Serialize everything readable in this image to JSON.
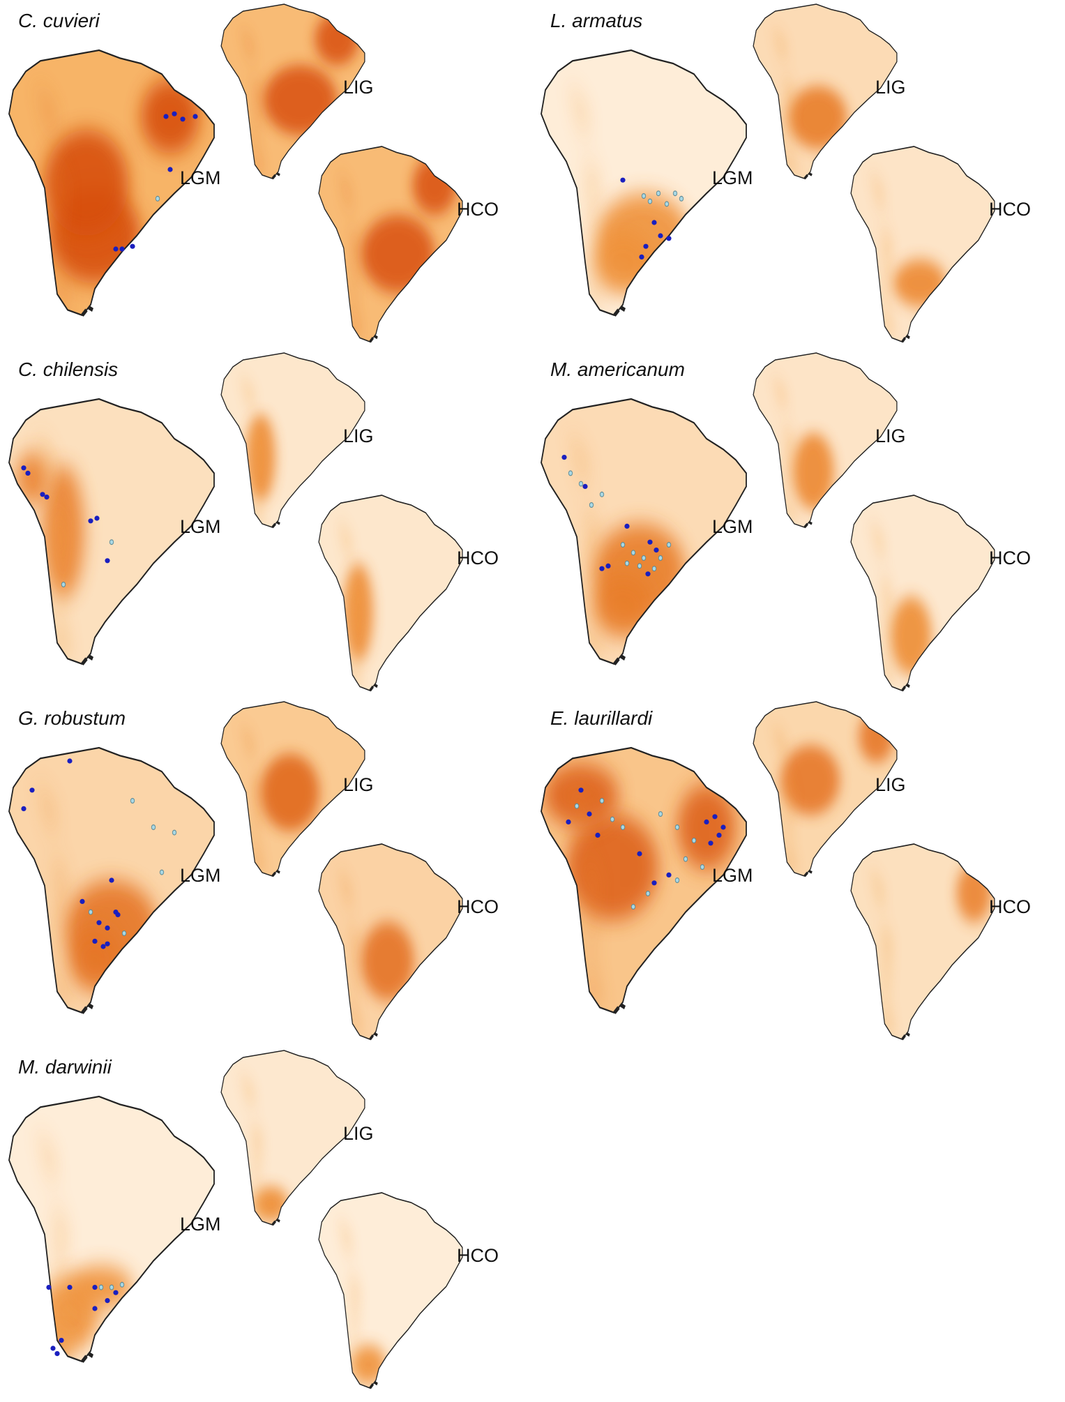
{
  "period_labels": {
    "lgm": "LGM",
    "lig": "LIG",
    "hco": "HCO"
  },
  "panels": [
    {
      "id": "cuvieri",
      "title": "C. cuvieri",
      "intensity": {
        "lgm": 0.8,
        "lig": 0.72,
        "hco": 0.72
      },
      "lgm_core": [
        [
          0.78,
          0.25,
          0.14,
          0.14
        ],
        [
          0.42,
          0.7,
          0.22,
          0.18
        ],
        [
          0.38,
          0.5,
          0.2,
          0.2
        ]
      ],
      "lig_core": [
        [
          0.55,
          0.55,
          0.25,
          0.2
        ],
        [
          0.8,
          0.2,
          0.15,
          0.15
        ]
      ],
      "hco_core": [
        [
          0.55,
          0.55,
          0.25,
          0.2
        ],
        [
          0.8,
          0.2,
          0.15,
          0.15
        ]
      ],
      "occ_major": [
        [
          0.76,
          0.25
        ],
        [
          0.8,
          0.24
        ],
        [
          0.84,
          0.26
        ],
        [
          0.9,
          0.25
        ],
        [
          0.78,
          0.45
        ],
        [
          0.52,
          0.75
        ],
        [
          0.55,
          0.75
        ],
        [
          0.6,
          0.74
        ]
      ],
      "occ_minor": [
        [
          0.72,
          0.56
        ]
      ]
    },
    {
      "id": "armatus",
      "title": "L. armatus",
      "intensity": {
        "lgm": 0.15,
        "lig": 0.35,
        "hco": 0.25
      },
      "lgm_core": [
        [
          0.5,
          0.7,
          0.22,
          0.16
        ],
        [
          0.4,
          0.8,
          0.14,
          0.12
        ]
      ],
      "lig_core": [
        [
          0.45,
          0.65,
          0.2,
          0.18
        ]
      ],
      "hco_core": [
        [
          0.48,
          0.7,
          0.18,
          0.12
        ]
      ],
      "occ_major": [
        [
          0.4,
          0.49
        ],
        [
          0.55,
          0.65
        ],
        [
          0.58,
          0.7
        ],
        [
          0.62,
          0.71
        ],
        [
          0.51,
          0.74
        ],
        [
          0.49,
          0.78
        ]
      ],
      "occ_minor": [
        [
          0.5,
          0.55
        ],
        [
          0.53,
          0.57
        ],
        [
          0.57,
          0.54
        ],
        [
          0.61,
          0.58
        ],
        [
          0.65,
          0.54
        ],
        [
          0.68,
          0.56
        ]
      ]
    },
    {
      "id": "chilensis",
      "title": "C. chilensis",
      "intensity": {
        "lgm": 0.3,
        "lig": 0.22,
        "hco": 0.22
      },
      "lgm_core": [
        [
          0.27,
          0.5,
          0.1,
          0.25
        ],
        [
          0.12,
          0.3,
          0.08,
          0.1
        ]
      ],
      "lig_core": [
        [
          0.28,
          0.6,
          0.1,
          0.25
        ]
      ],
      "hco_core": [
        [
          0.28,
          0.6,
          0.1,
          0.25
        ]
      ],
      "occ_major": [
        [
          0.08,
          0.26
        ],
        [
          0.1,
          0.28
        ],
        [
          0.17,
          0.36
        ],
        [
          0.19,
          0.37
        ],
        [
          0.4,
          0.46
        ],
        [
          0.43,
          0.45
        ],
        [
          0.48,
          0.61
        ]
      ],
      "occ_minor": [
        [
          0.5,
          0.54
        ],
        [
          0.27,
          0.7
        ]
      ]
    },
    {
      "id": "americanum",
      "title": "M. americanum",
      "intensity": {
        "lgm": 0.35,
        "lig": 0.25,
        "hco": 0.2
      },
      "lgm_core": [
        [
          0.48,
          0.65,
          0.22,
          0.18
        ],
        [
          0.4,
          0.78,
          0.14,
          0.12
        ]
      ],
      "lig_core": [
        [
          0.42,
          0.68,
          0.14,
          0.22
        ]
      ],
      "hco_core": [
        [
          0.42,
          0.72,
          0.14,
          0.2
        ]
      ],
      "occ_major": [
        [
          0.12,
          0.22
        ],
        [
          0.22,
          0.33
        ],
        [
          0.42,
          0.48
        ],
        [
          0.53,
          0.54
        ],
        [
          0.56,
          0.57
        ],
        [
          0.3,
          0.64
        ],
        [
          0.33,
          0.63
        ],
        [
          0.52,
          0.66
        ]
      ],
      "occ_minor": [
        [
          0.15,
          0.28
        ],
        [
          0.2,
          0.32
        ],
        [
          0.3,
          0.36
        ],
        [
          0.4,
          0.55
        ],
        [
          0.45,
          0.58
        ],
        [
          0.5,
          0.6
        ],
        [
          0.58,
          0.6
        ],
        [
          0.42,
          0.62
        ],
        [
          0.48,
          0.63
        ],
        [
          0.55,
          0.64
        ],
        [
          0.62,
          0.55
        ],
        [
          0.25,
          0.4
        ]
      ]
    },
    {
      "id": "robustum",
      "title": "G. robustum",
      "intensity": {
        "lgm": 0.42,
        "lig": 0.55,
        "hco": 0.45
      },
      "lgm_core": [
        [
          0.5,
          0.68,
          0.22,
          0.18
        ],
        [
          0.42,
          0.8,
          0.12,
          0.12
        ]
      ],
      "lig_core": [
        [
          0.48,
          0.52,
          0.2,
          0.22
        ]
      ],
      "hco_core": [
        [
          0.48,
          0.6,
          0.18,
          0.2
        ]
      ],
      "occ_major": [
        [
          0.3,
          0.05
        ],
        [
          0.12,
          0.16
        ],
        [
          0.08,
          0.23
        ],
        [
          0.5,
          0.5
        ],
        [
          0.36,
          0.58
        ],
        [
          0.52,
          0.62
        ],
        [
          0.53,
          0.63
        ],
        [
          0.44,
          0.66
        ],
        [
          0.48,
          0.68
        ],
        [
          0.42,
          0.73
        ],
        [
          0.48,
          0.74
        ],
        [
          0.46,
          0.75
        ]
      ],
      "occ_minor": [
        [
          0.6,
          0.2
        ],
        [
          0.7,
          0.3
        ],
        [
          0.8,
          0.32
        ],
        [
          0.74,
          0.47
        ],
        [
          0.4,
          0.62
        ],
        [
          0.56,
          0.7
        ]
      ]
    },
    {
      "id": "laurillardi",
      "title": "E. laurillardi",
      "intensity": {
        "lgm": 0.6,
        "lig": 0.4,
        "hco": 0.3
      },
      "lgm_core": [
        [
          0.8,
          0.3,
          0.14,
          0.16
        ],
        [
          0.35,
          0.45,
          0.22,
          0.2
        ],
        [
          0.2,
          0.18,
          0.18,
          0.12
        ]
      ],
      "lig_core": [
        [
          0.85,
          0.2,
          0.12,
          0.15
        ],
        [
          0.4,
          0.45,
          0.2,
          0.2
        ]
      ],
      "hco_core": [
        [
          0.85,
          0.25,
          0.12,
          0.15
        ]
      ],
      "occ_major": [
        [
          0.2,
          0.16
        ],
        [
          0.24,
          0.25
        ],
        [
          0.14,
          0.28
        ],
        [
          0.28,
          0.33
        ],
        [
          0.48,
          0.4
        ],
        [
          0.8,
          0.28
        ],
        [
          0.84,
          0.26
        ],
        [
          0.88,
          0.3
        ],
        [
          0.86,
          0.33
        ],
        [
          0.82,
          0.36
        ],
        [
          0.62,
          0.48
        ],
        [
          0.55,
          0.51
        ]
      ],
      "occ_minor": [
        [
          0.18,
          0.22
        ],
        [
          0.3,
          0.2
        ],
        [
          0.35,
          0.27
        ],
        [
          0.4,
          0.3
        ],
        [
          0.58,
          0.25
        ],
        [
          0.66,
          0.3
        ],
        [
          0.74,
          0.35
        ],
        [
          0.7,
          0.42
        ],
        [
          0.52,
          0.55
        ],
        [
          0.45,
          0.6
        ],
        [
          0.66,
          0.5
        ],
        [
          0.78,
          0.45
        ]
      ]
    },
    {
      "id": "darwinii",
      "title": "M. darwinii",
      "intensity": {
        "lgm": 0.15,
        "lig": 0.2,
        "hco": 0.15
      },
      "lgm_core": [
        [
          0.3,
          0.82,
          0.14,
          0.14
        ],
        [
          0.2,
          0.95,
          0.1,
          0.06
        ],
        [
          0.45,
          0.72,
          0.15,
          0.08
        ]
      ],
      "lig_core": [
        [
          0.35,
          0.88,
          0.12,
          0.1
        ]
      ],
      "hco_core": [
        [
          0.35,
          0.88,
          0.12,
          0.1
        ]
      ],
      "occ_major": [
        [
          0.2,
          0.72
        ],
        [
          0.3,
          0.72
        ],
        [
          0.42,
          0.72
        ],
        [
          0.48,
          0.77
        ],
        [
          0.42,
          0.8
        ],
        [
          0.52,
          0.74
        ],
        [
          0.26,
          0.92
        ],
        [
          0.22,
          0.95
        ],
        [
          0.24,
          0.97
        ]
      ],
      "occ_minor": [
        [
          0.45,
          0.72
        ],
        [
          0.5,
          0.72
        ],
        [
          0.55,
          0.71
        ]
      ]
    }
  ],
  "colors": {
    "low": "#fffaf2",
    "mid": "#f5a244",
    "high": "#cf3a00",
    "occ_major": "#1a1fbf",
    "occ_minor": "#a9d8e4",
    "coast": "#222222"
  }
}
